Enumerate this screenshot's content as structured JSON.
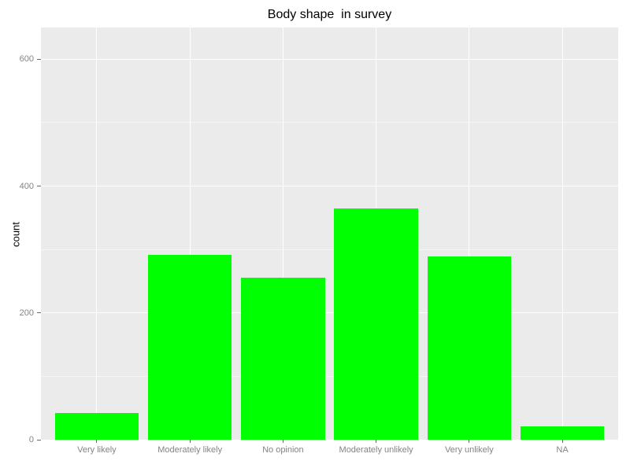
{
  "chart_data": {
    "type": "bar",
    "title": "Body shape  in survey",
    "xlabel": "",
    "ylabel": "count",
    "categories": [
      "Very likely",
      "Moderately likely",
      "No opinion",
      "Moderately unlikely",
      "Very unlikely",
      "NA"
    ],
    "values": [
      42,
      291,
      255,
      365,
      289,
      21
    ],
    "ylim": [
      0,
      650
    ],
    "yticks": [
      0,
      200,
      400,
      600
    ],
    "yticks_minor": [
      100,
      300,
      500
    ],
    "grid": true,
    "legend": "none",
    "style": "ggplot-grey-theme",
    "colors": {
      "bar_fill": "#00FF00",
      "panel_background": "#EBEBEB",
      "grid_major": "#FFFFFF",
      "grid_minor": "rgba(255,255,255,0.55)",
      "tick_label": "#848484",
      "tick_mark": "#666666",
      "title_text": "#000000",
      "page_background": "#FFFFFF"
    }
  }
}
